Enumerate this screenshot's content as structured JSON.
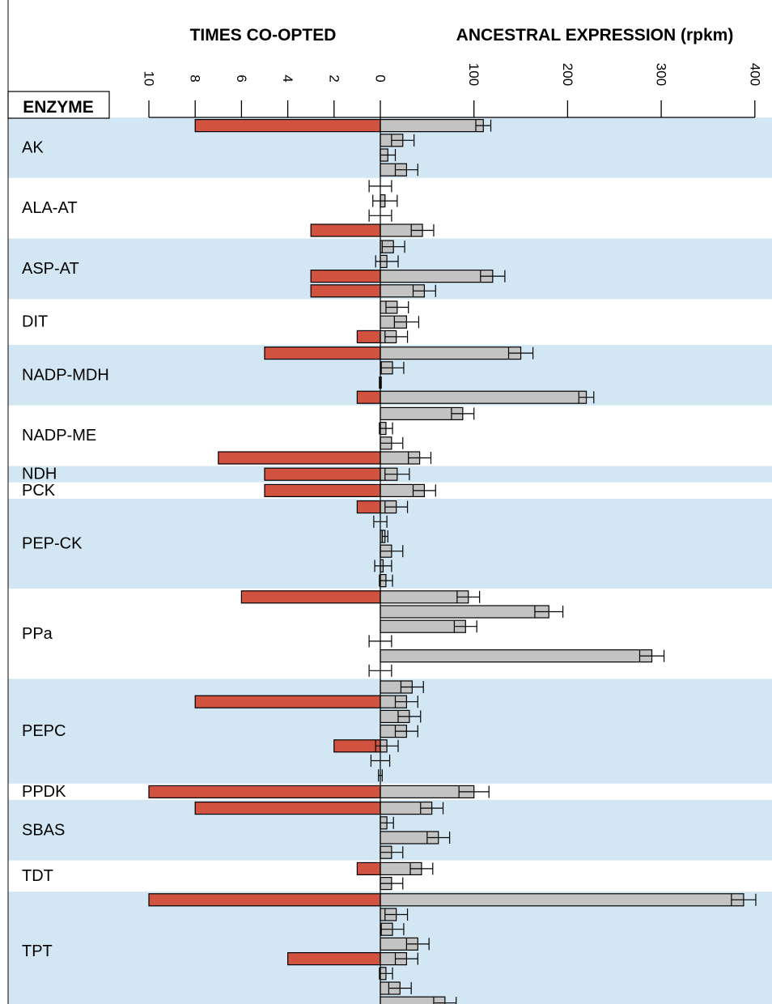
{
  "chart_data": {
    "type": "bar",
    "headers": {
      "enzyme": "ENZYME",
      "left": "TIMES CO-OPTED",
      "right": "ANCESTRAL EXPRESSION (rpkm)"
    },
    "left_axis": {
      "ticks": [
        10,
        8,
        6,
        4,
        2,
        0
      ],
      "range": [
        0,
        10
      ]
    },
    "right_axis": {
      "ticks": [
        0,
        100,
        200,
        300,
        400
      ],
      "range": [
        0,
        400
      ]
    },
    "band_colors": {
      "shaded": "#d2e7f3",
      "plain": "#ffffff"
    },
    "series_colors": {
      "co_opted": "#d0523f",
      "expression": "#c3c3c3"
    },
    "enzymes": [
      {
        "name": "AK",
        "shaded": true,
        "rows": [
          {
            "co": 8,
            "expr": 110,
            "err": 8
          },
          {
            "co": 0,
            "expr": 24,
            "err": 12
          },
          {
            "co": 0,
            "expr": 8,
            "err": 8
          },
          {
            "co": 0,
            "expr": 28,
            "err": 12
          }
        ]
      },
      {
        "name": "ALA-AT",
        "shaded": false,
        "rows": [
          {
            "co": 0,
            "expr": 0,
            "err": 12
          },
          {
            "co": 0,
            "expr": 5,
            "err": 13
          },
          {
            "co": 0,
            "expr": 0,
            "err": 12
          },
          {
            "co": 3,
            "expr": 45,
            "err": 12
          }
        ]
      },
      {
        "name": "ASP-AT",
        "shaded": true,
        "rows": [
          {
            "co": 0,
            "expr": 14,
            "err": 12
          },
          {
            "co": 0,
            "expr": 7,
            "err": 12
          },
          {
            "co": 3,
            "expr": 120,
            "err": 13
          },
          {
            "co": 3,
            "expr": 47,
            "err": 12
          }
        ]
      },
      {
        "name": "DIT",
        "shaded": false,
        "rows": [
          {
            "co": 0,
            "expr": 18,
            "err": 12
          },
          {
            "co": 0,
            "expr": 28,
            "err": 13
          },
          {
            "co": 1,
            "expr": 17,
            "err": 12
          }
        ]
      },
      {
        "name": "NADP-MDH",
        "shaded": true,
        "rows": [
          {
            "co": 5,
            "expr": 150,
            "err": 13
          },
          {
            "co": 0,
            "expr": 13,
            "err": 12
          },
          {
            "co": 0,
            "expr": 0,
            "err": 1
          },
          {
            "co": 1,
            "expr": 220,
            "err": 8
          }
        ]
      },
      {
        "name": "NADP-ME",
        "shaded": false,
        "rows": [
          {
            "co": 0,
            "expr": 88,
            "err": 12
          },
          {
            "co": 0,
            "expr": 6,
            "err": 7
          },
          {
            "co": 0,
            "expr": 12,
            "err": 12
          },
          {
            "co": 7,
            "expr": 42,
            "err": 12
          }
        ]
      },
      {
        "name": "NDH",
        "shaded": true,
        "rows": [
          {
            "co": 5,
            "expr": 18,
            "err": 13
          }
        ]
      },
      {
        "name": "PCK",
        "shaded": false,
        "rows": [
          {
            "co": 5,
            "expr": 47,
            "err": 12
          }
        ]
      },
      {
        "name": "PEP-CK",
        "shaded": true,
        "rows": [
          {
            "co": 1,
            "expr": 17,
            "err": 12
          },
          {
            "co": 0,
            "expr": 0,
            "err": 7
          },
          {
            "co": 0,
            "expr": 5,
            "err": 3
          },
          {
            "co": 0,
            "expr": 12,
            "err": 12
          },
          {
            "co": 0,
            "expr": 3,
            "err": 9
          },
          {
            "co": 0,
            "expr": 6,
            "err": 7
          }
        ]
      },
      {
        "name": "PPa",
        "shaded": false,
        "rows": [
          {
            "co": 6,
            "expr": 94,
            "err": 12
          },
          {
            "co": 0,
            "expr": 180,
            "err": 15
          },
          {
            "co": 0,
            "expr": 91,
            "err": 12
          },
          {
            "co": 0,
            "expr": 0,
            "err": 12
          },
          {
            "co": 0,
            "expr": 290,
            "err": 13
          },
          {
            "co": 0,
            "expr": 0,
            "err": 12
          }
        ]
      },
      {
        "name": "PEPC",
        "shaded": true,
        "rows": [
          {
            "co": 0,
            "expr": 34,
            "err": 12
          },
          {
            "co": 8,
            "expr": 28,
            "err": 12
          },
          {
            "co": 0,
            "expr": 31,
            "err": 12
          },
          {
            "co": 0,
            "expr": 28,
            "err": 12
          },
          {
            "co": 2,
            "expr": 7,
            "err": 12
          },
          {
            "co": 0,
            "expr": 0,
            "err": 10
          },
          {
            "co": 0,
            "expr": 0,
            "err": 2
          }
        ]
      },
      {
        "name": "PPDK",
        "shaded": false,
        "rows": [
          {
            "co": 10,
            "expr": 100,
            "err": 16
          }
        ]
      },
      {
        "name": "SBAS",
        "shaded": true,
        "rows": [
          {
            "co": 8,
            "expr": 55,
            "err": 12
          },
          {
            "co": 0,
            "expr": 7,
            "err": 7
          },
          {
            "co": 0,
            "expr": 62,
            "err": 12
          },
          {
            "co": 0,
            "expr": 12,
            "err": 12
          }
        ]
      },
      {
        "name": "TDT",
        "shaded": false,
        "rows": [
          {
            "co": 1,
            "expr": 44,
            "err": 12
          },
          {
            "co": 0,
            "expr": 12,
            "err": 12
          }
        ]
      },
      {
        "name": "TPT",
        "shaded": true,
        "rows": [
          {
            "co": 10,
            "expr": 388,
            "err": 13
          },
          {
            "co": 0,
            "expr": 17,
            "err": 12
          },
          {
            "co": 0,
            "expr": 13,
            "err": 12
          },
          {
            "co": 0,
            "expr": 40,
            "err": 12
          },
          {
            "co": 4,
            "expr": 28,
            "err": 12
          },
          {
            "co": 0,
            "expr": 6,
            "err": 7
          },
          {
            "co": 0,
            "expr": 21,
            "err": 12
          },
          {
            "co": 0,
            "expr": 69,
            "err": 12
          }
        ]
      }
    ]
  }
}
